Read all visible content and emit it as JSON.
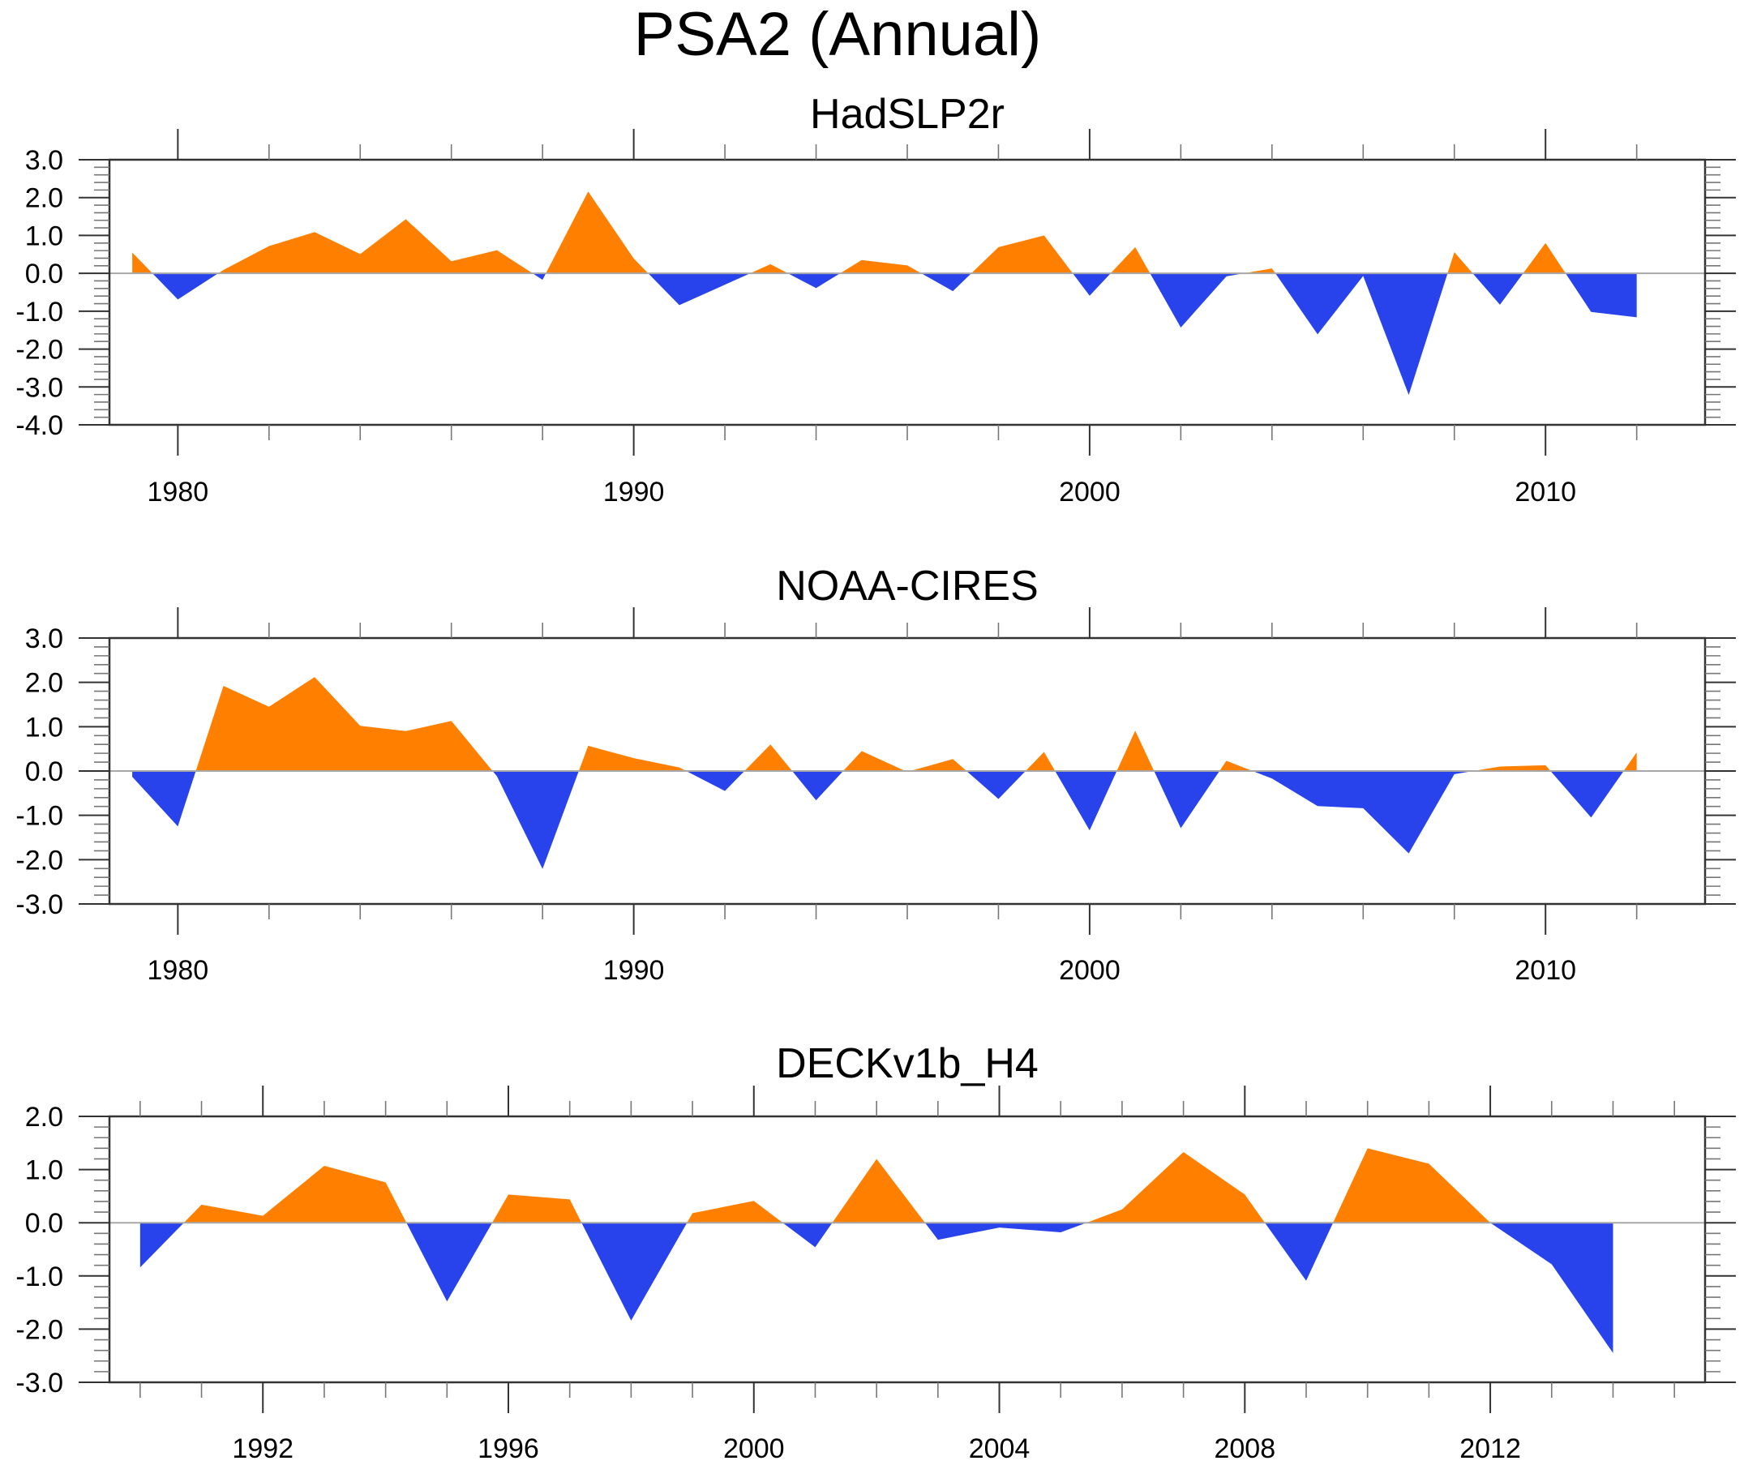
{
  "figure": {
    "title": "PSA2 (Annual)"
  },
  "colors": {
    "positive": "#FF8000",
    "negative": "#2843EB",
    "zero_line": "#A8A8A8",
    "frame": "#333333"
  },
  "chart_data": [
    {
      "type": "area",
      "title": "HadSLP2r",
      "xlabel": "",
      "ylabel": "",
      "xlim": [
        1978.5,
        2013.5
      ],
      "ylim": [
        -4.0,
        3.0
      ],
      "x_ticks": [
        1980,
        1990,
        2000,
        2010
      ],
      "x_tick_labels": [
        "1980",
        "1990",
        "2000",
        "2010"
      ],
      "x_minor_step": 2,
      "y_ticks": [
        3.0,
        2.0,
        1.0,
        0.0,
        -1.0,
        -2.0,
        -3.0,
        -4.0
      ],
      "y_tick_labels": [
        "3.0",
        "2.0",
        "1.0",
        "0.0",
        "-1.0",
        "-2.0",
        "-3.0",
        "-4.0"
      ],
      "y_minor_step": 0.2,
      "fill_rule": "above zero = positive color, below zero = negative color",
      "grid": false,
      "x": [
        1979,
        1980,
        1981,
        1982,
        1983,
        1984,
        1985,
        1986,
        1987,
        1988,
        1989,
        1990,
        1991,
        1992,
        1993,
        1994,
        1995,
        1996,
        1997,
        1998,
        1999,
        2000,
        2001,
        2002,
        2003,
        2004,
        2005,
        2006,
        2007,
        2008,
        2009,
        2010,
        2011,
        2012
      ],
      "values": [
        0.55,
        -0.69,
        0.09,
        0.72,
        1.09,
        0.51,
        1.43,
        0.32,
        0.61,
        -0.17,
        2.16,
        0.39,
        -0.84,
        -0.3,
        0.24,
        -0.39,
        0.35,
        0.21,
        -0.47,
        0.69,
        1.0,
        -0.59,
        0.69,
        -1.43,
        -0.08,
        0.13,
        -1.61,
        -0.07,
        -3.21,
        0.56,
        -0.83,
        0.8,
        -1.02,
        -1.16
      ]
    },
    {
      "type": "area",
      "title": "NOAA-CIRES",
      "xlabel": "",
      "ylabel": "",
      "xlim": [
        1978.5,
        2013.5
      ],
      "ylim": [
        -3.0,
        3.0
      ],
      "x_ticks": [
        1980,
        1990,
        2000,
        2010
      ],
      "x_tick_labels": [
        "1980",
        "1990",
        "2000",
        "2010"
      ],
      "x_minor_step": 2,
      "y_ticks": [
        3.0,
        2.0,
        1.0,
        0.0,
        -1.0,
        -2.0,
        -3.0
      ],
      "y_tick_labels": [
        "3.0",
        "2.0",
        "1.0",
        "0.0",
        "-1.0",
        "-2.0",
        "-3.0"
      ],
      "y_minor_step": 0.2,
      "fill_rule": "above zero = positive color, below zero = negative color",
      "grid": false,
      "x": [
        1979,
        1980,
        1981,
        1982,
        1983,
        1984,
        1985,
        1986,
        1987,
        1988,
        1989,
        1990,
        1991,
        1992,
        1993,
        1994,
        1995,
        1996,
        1997,
        1998,
        1999,
        2000,
        2001,
        2002,
        2003,
        2004,
        2005,
        2006,
        2007,
        2008,
        2009,
        2010,
        2011,
        2012
      ],
      "values": [
        -0.13,
        -1.25,
        1.92,
        1.45,
        2.12,
        1.02,
        0.9,
        1.13,
        -0.12,
        -2.21,
        0.57,
        0.29,
        0.08,
        -0.45,
        0.6,
        -0.66,
        0.45,
        -0.02,
        0.27,
        -0.63,
        0.43,
        -1.34,
        0.91,
        -1.29,
        0.23,
        -0.17,
        -0.79,
        -0.84,
        -1.86,
        -0.07,
        0.1,
        0.13,
        -1.05,
        0.42
      ]
    },
    {
      "type": "area",
      "title": "DECKv1b_H4",
      "xlabel": "",
      "ylabel": "",
      "xlim": [
        1989.5,
        2015.5
      ],
      "ylim": [
        -3.0,
        2.0
      ],
      "x_ticks": [
        1992,
        1996,
        2000,
        2004,
        2008,
        2012
      ],
      "x_tick_labels": [
        "1992",
        "1996",
        "2000",
        "2004",
        "2008",
        "2012"
      ],
      "x_minor_step": 1,
      "y_ticks": [
        2.0,
        1.0,
        0.0,
        -1.0,
        -2.0,
        -3.0
      ],
      "y_tick_labels": [
        "2.0",
        "1.0",
        "0.0",
        "-1.0",
        "-2.0",
        "-3.0"
      ],
      "y_minor_step": 0.2,
      "fill_rule": "above zero = positive color, below zero = negative color",
      "grid": false,
      "x": [
        1990,
        1991,
        1992,
        1993,
        1994,
        1995,
        1996,
        1997,
        1998,
        1999,
        2000,
        2001,
        2002,
        2003,
        2004,
        2005,
        2006,
        2007,
        2008,
        2009,
        2010,
        2011,
        2012,
        2013,
        2014
      ],
      "values": [
        -0.84,
        0.34,
        0.13,
        1.07,
        0.76,
        -1.48,
        0.53,
        0.44,
        -1.84,
        0.18,
        0.41,
        -0.46,
        1.2,
        -0.32,
        -0.09,
        -0.18,
        0.25,
        1.33,
        0.53,
        -1.09,
        1.4,
        1.11,
        0.0,
        -0.78,
        -2.45
      ]
    }
  ]
}
